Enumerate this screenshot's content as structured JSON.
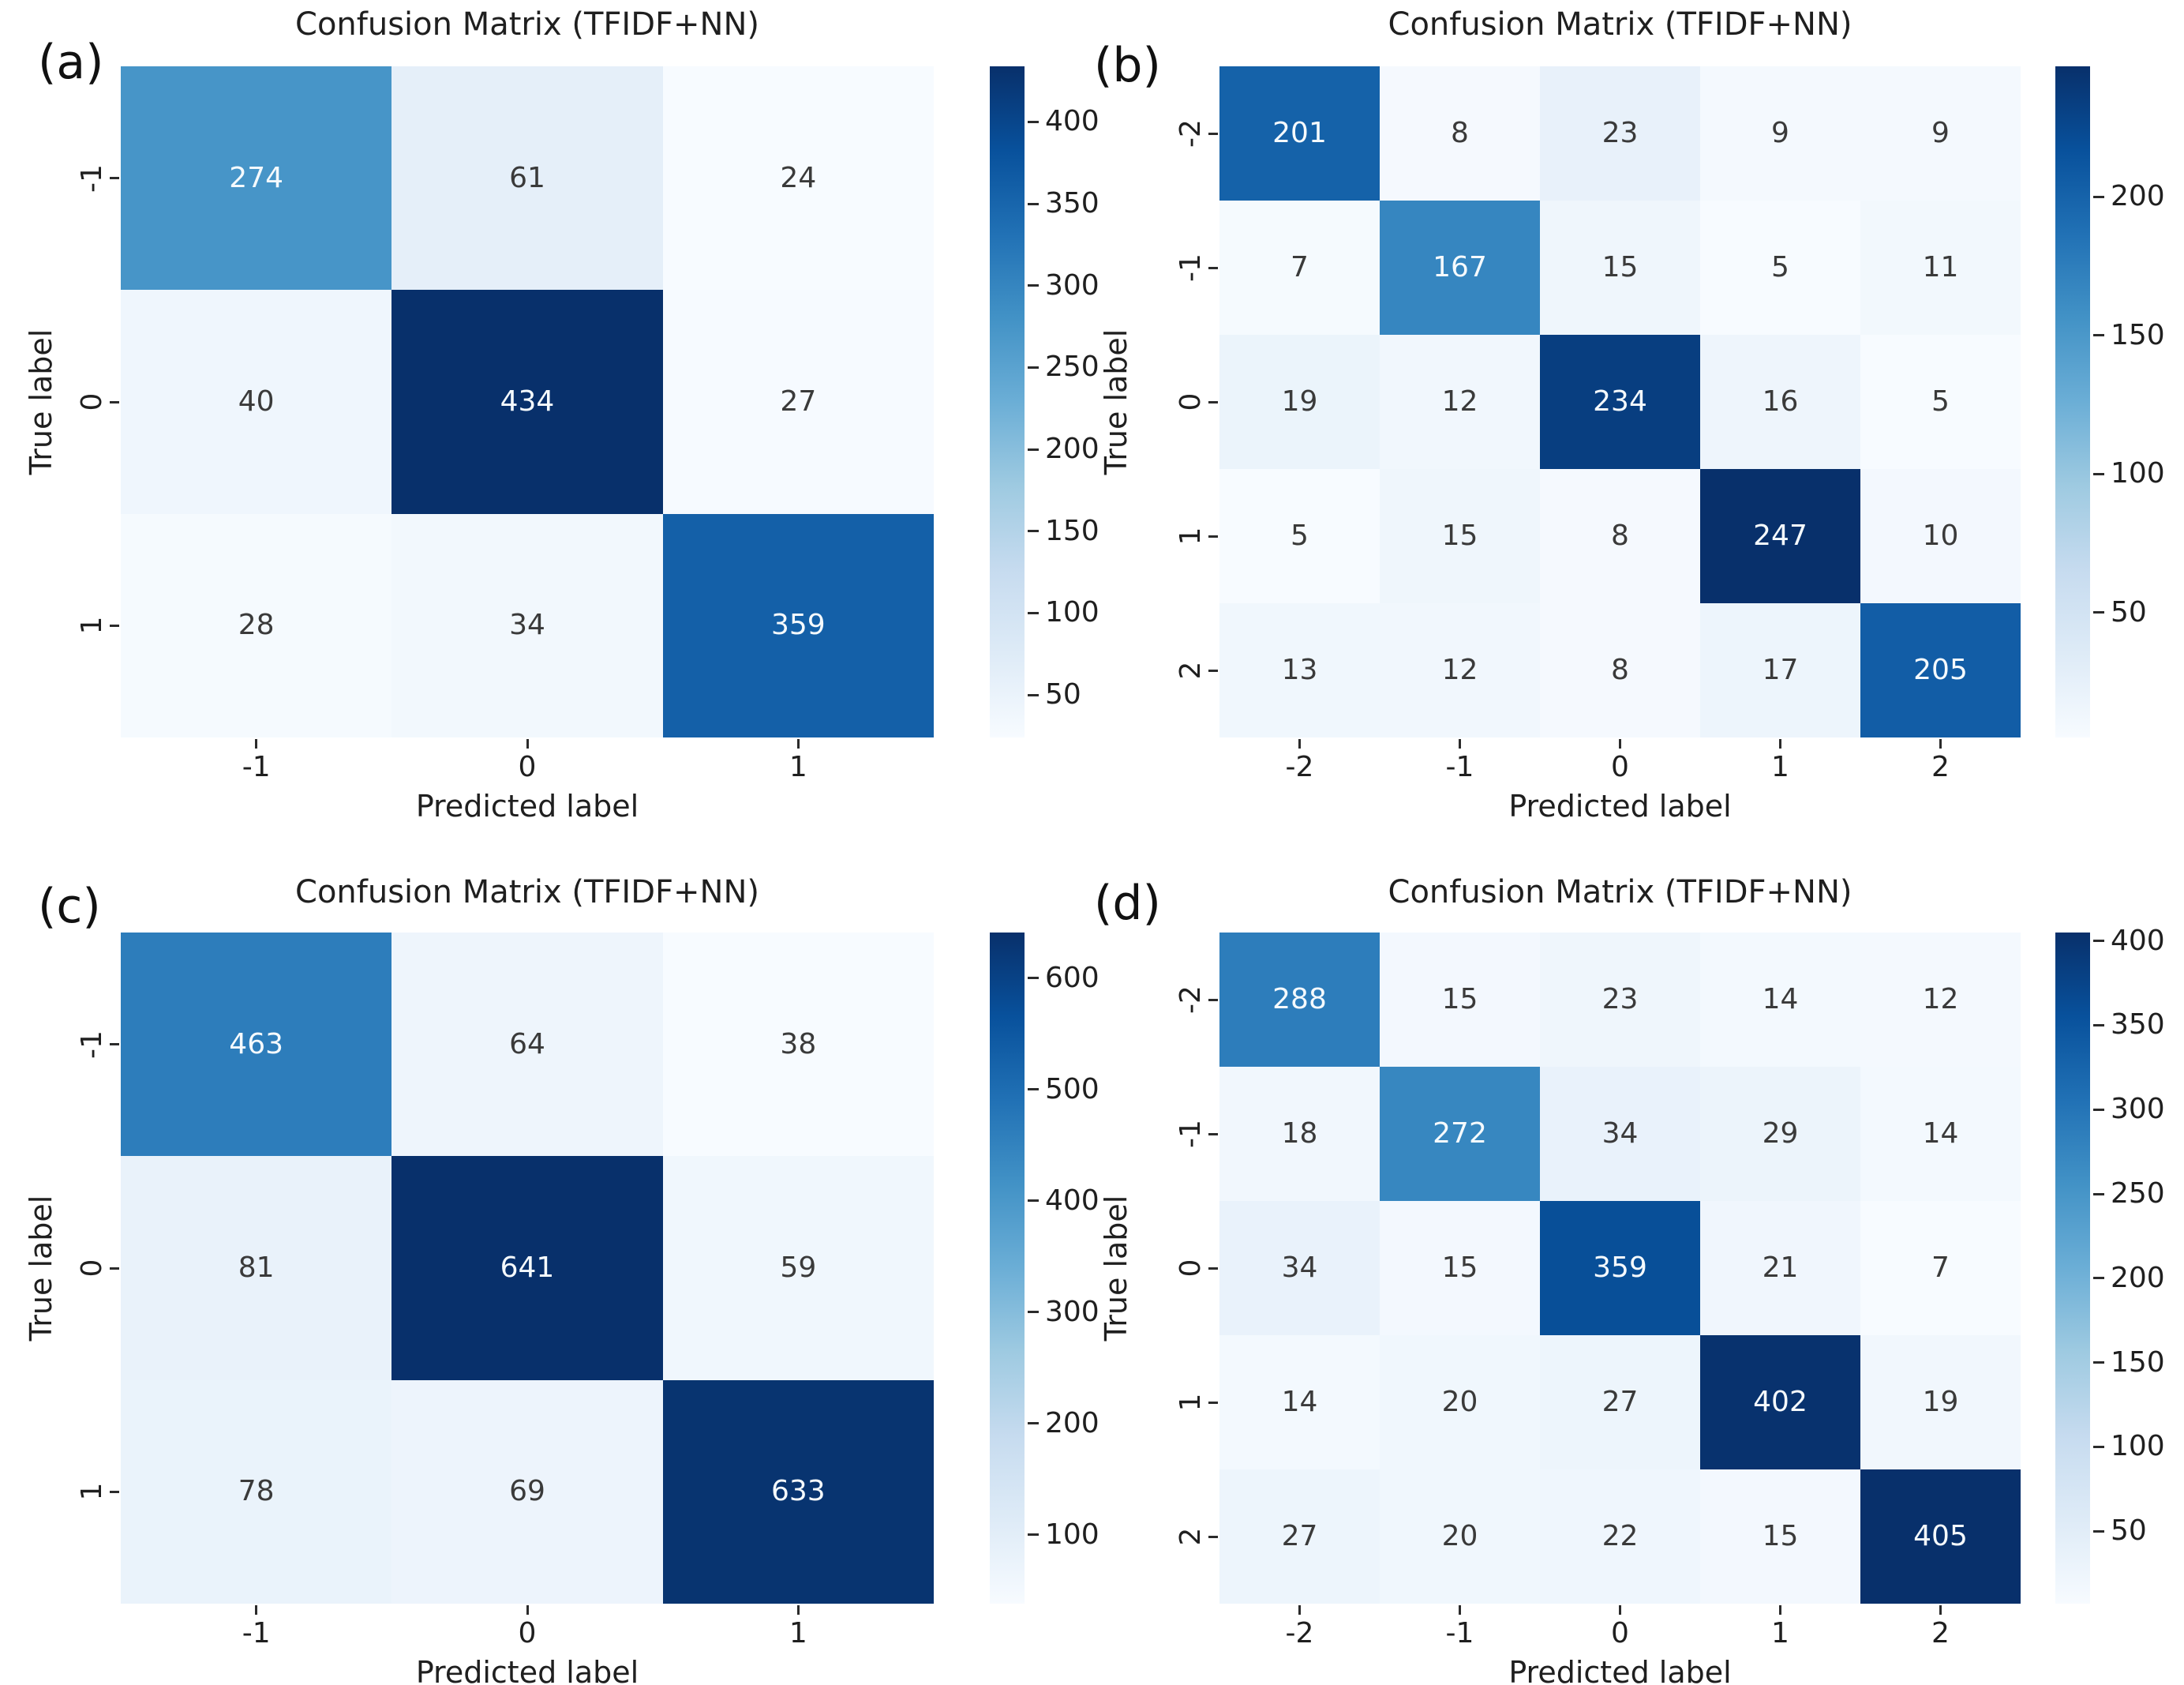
{
  "colors": {
    "background": "#ffffff",
    "axis_text": "#1f1f1f",
    "annot_dark": "#3a3a3a",
    "annot_light": "#f5fafd",
    "tick_mark": "#2b2b2b"
  },
  "colormap": {
    "name": "Blues",
    "stops": [
      "#f7fbff",
      "#deebf7",
      "#c6dbef",
      "#9ecae1",
      "#6baed6",
      "#4292c6",
      "#2171b5",
      "#08519c",
      "#08306b"
    ]
  },
  "chart_data": [
    {
      "type": "heatmap",
      "panel_label": "(a)",
      "title": "Confusion Matrix (TFIDF+NN)",
      "xlabel": "Predicted label",
      "ylabel": "True label",
      "x_categories": [
        "-1",
        "0",
        "1"
      ],
      "y_categories": [
        "-1",
        "0",
        "1"
      ],
      "values": [
        [
          274,
          61,
          24
        ],
        [
          40,
          434,
          27
        ],
        [
          28,
          34,
          359
        ]
      ],
      "vmin": 24,
      "vmax": 434,
      "colorbar_ticks": [
        50,
        100,
        150,
        200,
        250,
        300,
        350,
        400
      ],
      "legend_position": "right-colorbar",
      "grid": false
    },
    {
      "type": "heatmap",
      "panel_label": "(b)",
      "title": "Confusion Matrix (TFIDF+NN)",
      "xlabel": "Predicted label",
      "ylabel": "True label",
      "x_categories": [
        "-2",
        "-1",
        "0",
        "1",
        "2"
      ],
      "y_categories": [
        "-2",
        "-1",
        "0",
        "1",
        "2"
      ],
      "values": [
        [
          201,
          8,
          23,
          9,
          9
        ],
        [
          7,
          167,
          15,
          5,
          11
        ],
        [
          19,
          12,
          234,
          16,
          5
        ],
        [
          5,
          15,
          8,
          247,
          10
        ],
        [
          13,
          12,
          8,
          17,
          205
        ]
      ],
      "vmin": 5,
      "vmax": 247,
      "colorbar_ticks": [
        50,
        100,
        150,
        200
      ],
      "legend_position": "right-colorbar",
      "grid": false
    },
    {
      "type": "heatmap",
      "panel_label": "(c)",
      "title": "Confusion Matrix (TFIDF+NN)",
      "xlabel": "Predicted label",
      "ylabel": "True label",
      "x_categories": [
        "-1",
        "0",
        "1"
      ],
      "y_categories": [
        "-1",
        "0",
        "1"
      ],
      "values": [
        [
          463,
          64,
          38
        ],
        [
          81,
          641,
          59
        ],
        [
          78,
          69,
          633
        ]
      ],
      "vmin": 38,
      "vmax": 641,
      "colorbar_ticks": [
        100,
        200,
        300,
        400,
        500,
        600
      ],
      "legend_position": "right-colorbar",
      "grid": false
    },
    {
      "type": "heatmap",
      "panel_label": "(d)",
      "title": "Confusion Matrix (TFIDF+NN)",
      "xlabel": "Predicted label",
      "ylabel": "True label",
      "x_categories": [
        "-2",
        "-1",
        "0",
        "1",
        "2"
      ],
      "y_categories": [
        "-2",
        "-1",
        "0",
        "1",
        "2"
      ],
      "values": [
        [
          288,
          15,
          23,
          14,
          12
        ],
        [
          18,
          272,
          34,
          29,
          14
        ],
        [
          34,
          15,
          359,
          21,
          7
        ],
        [
          14,
          20,
          27,
          402,
          19
        ],
        [
          27,
          20,
          22,
          15,
          405
        ]
      ],
      "vmin": 7,
      "vmax": 405,
      "colorbar_ticks": [
        50,
        100,
        150,
        200,
        250,
        300,
        350,
        400
      ],
      "legend_position": "right-colorbar",
      "grid": false
    }
  ]
}
